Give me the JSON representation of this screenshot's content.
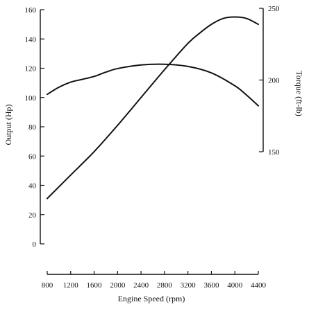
{
  "chart_data": {
    "type": "line",
    "title": "",
    "xlabel": "Engine Speed (rpm)",
    "ylabel_left": "Output (Hp)",
    "ylabel_right": "Torque (ft-lb)",
    "xlim": [
      800,
      4400
    ],
    "ylim_left": [
      0,
      160
    ],
    "ylim_right": [
      150,
      250
    ],
    "grid": false,
    "x_ticks": [
      800,
      1200,
      1600,
      2000,
      2400,
      2800,
      3200,
      3600,
      4000,
      4400
    ],
    "x_tick_labels": [
      "800",
      "1200",
      "1600",
      "2000",
      "2400",
      "2800",
      "3200",
      "3600",
      "4000",
      "4400"
    ],
    "y_left_ticks": [
      0,
      20,
      40,
      60,
      80,
      100,
      120,
      140,
      160
    ],
    "y_left_tick_labels": [
      "0",
      "20",
      "40",
      "60",
      "80",
      "100",
      "120",
      "140",
      "160"
    ],
    "y_right_ticks": [
      150,
      200,
      250
    ],
    "y_right_tick_labels": [
      "150",
      "200",
      "250"
    ],
    "series": [
      {
        "axis": "left",
        "x": [
          800,
          1200,
          1600,
          2000,
          2400,
          2800,
          3200,
          3400,
          3600,
          3800,
          4000,
          4200,
          4400
        ],
        "values": [
          31,
          47,
          63,
          81,
          100,
          119,
          137,
          144,
          150,
          154,
          155,
          154,
          150
        ]
      },
      {
        "axis": "right",
        "x": [
          800,
          1000,
          1200,
          1400,
          1600,
          1800,
          2000,
          2400,
          2800,
          3200,
          3600,
          4000,
          4200,
          4400
        ],
        "values": [
          190,
          195,
          198.5,
          200.5,
          202.5,
          205.5,
          208,
          210.5,
          211,
          209.5,
          205,
          196,
          189.5,
          182
        ]
      }
    ]
  }
}
